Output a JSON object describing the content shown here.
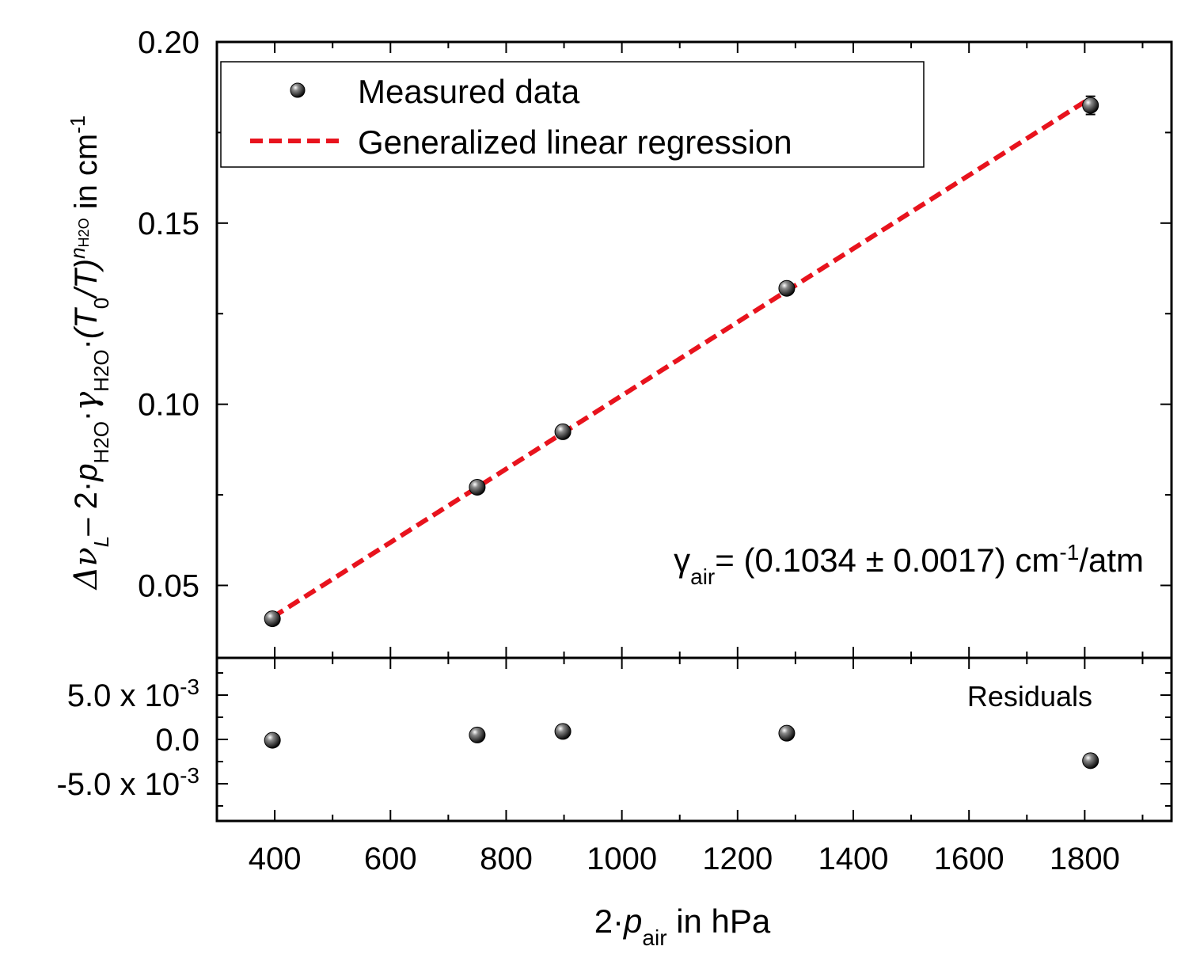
{
  "chart_data": [
    {
      "panel": "main",
      "type": "scatter",
      "title": "",
      "xlabel": {
        "prefix": "2·",
        "p": "p",
        "sub": "air",
        "suffix": " in hPa"
      },
      "ylabel": {
        "delta": "Δν",
        "sub_L": "L",
        "part1": "– 2·",
        "p": "p",
        "sub_h2o_1": "H2O",
        "dot": "·",
        "gamma": "γ",
        "sub_h2o_2": "H2O",
        "dot2": "·",
        "ratio_open": "(",
        "T0": "T",
        "sub_0": "0",
        "ratio_mid": "/",
        "T": "T",
        "ratio_close": ")",
        "sup_n": "n",
        "sup_n_sub": "H2O",
        "suffix": " in cm",
        "sup_unit": "-1"
      },
      "xlim": [
        300,
        1950
      ],
      "ylim": [
        0.03,
        0.2
      ],
      "xticks": [
        400,
        600,
        800,
        1000,
        1200,
        1400,
        1600,
        1800
      ],
      "xtick_labels": [
        "400",
        "600",
        "800",
        "1000",
        "1200",
        "1400",
        "1600",
        "1800"
      ],
      "yticks": [
        0.05,
        0.1,
        0.15,
        0.2
      ],
      "ytick_labels": [
        "0.05",
        "0.10",
        "0.15",
        "0.20"
      ],
      "series": [
        {
          "name": "Measured data",
          "kind": "points",
          "x": [
            396,
            750,
            898,
            1285,
            1810
          ],
          "y": [
            0.0408,
            0.0771,
            0.0924,
            0.132,
            0.1825
          ],
          "yerr": [
            0.001,
            0.001,
            0.001,
            0.0015,
            0.0025
          ]
        },
        {
          "name": "Generalized linear regression",
          "kind": "line",
          "x": [
            396,
            1810
          ],
          "y": [
            0.0412,
            0.1845
          ],
          "color": "#e8131d"
        }
      ],
      "legend": {
        "position": "top-left",
        "entries": [
          "Measured data",
          "Generalized linear regression"
        ]
      },
      "annotation": {
        "gamma": "γ",
        "sub": "air",
        "text1": "= (0.1034 ± 0.0017) cm",
        "sup": "-1",
        "text2": "/atm",
        "position": "lower-right"
      }
    },
    {
      "panel": "residuals",
      "type": "scatter",
      "label": "Residuals",
      "xlim": [
        300,
        1950
      ],
      "ylim": [
        -0.0092,
        0.0092
      ],
      "yticks": [
        0.005,
        0.0,
        -0.005
      ],
      "ytick_labels": [
        {
          "mant": "5.0 x 10",
          "exp": "-3"
        },
        {
          "mant": "0.0",
          "exp": ""
        },
        {
          "mant": "-5.0 x 10",
          "exp": "-3"
        }
      ],
      "series": [
        {
          "name": "Residuals",
          "x": [
            396,
            750,
            898,
            1285,
            1810
          ],
          "y": [
            -0.0001,
            0.0005,
            0.0009,
            0.0007,
            -0.0024
          ]
        }
      ]
    }
  ],
  "colors": {
    "regression": "#e8131d",
    "marker": "#111111",
    "axis": "#000000"
  }
}
